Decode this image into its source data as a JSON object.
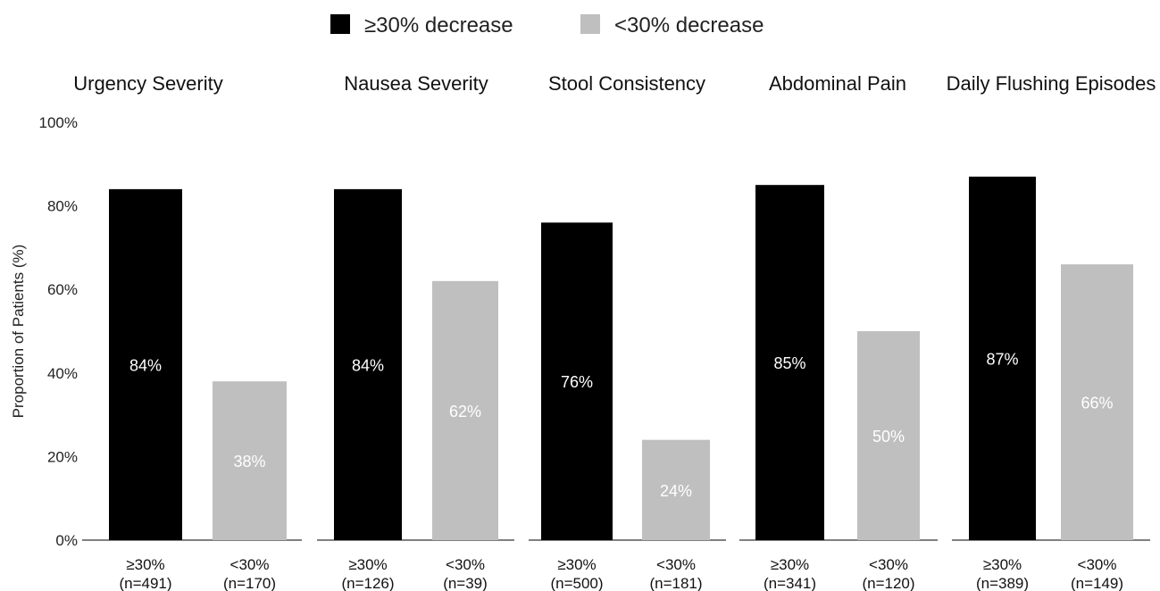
{
  "chart_data": {
    "type": "bar",
    "ylabel": "Proportion of Patients (%)",
    "ylim": [
      0,
      100
    ],
    "yticks": [
      "0%",
      "20%",
      "40%",
      "60%",
      "80%",
      "100%"
    ],
    "ytick_values": [
      0,
      20,
      40,
      60,
      80,
      100
    ],
    "grid": false,
    "legend_position": "top-center",
    "legend": [
      {
        "label": "≥30% decrease",
        "color": "#000000"
      },
      {
        "label": "<30% decrease",
        "color": "#bfbfbf"
      }
    ],
    "panels": [
      {
        "title": "Urgency Severity",
        "bars": [
          {
            "label": "≥30%",
            "n": "(n=491)",
            "value": 84,
            "value_label": "84%",
            "series": "≥30% decrease"
          },
          {
            "label": "<30%",
            "n": "(n=170)",
            "value": 38,
            "value_label": "38%",
            "series": "<30% decrease"
          }
        ]
      },
      {
        "title": "Nausea Severity",
        "bars": [
          {
            "label": "≥30%",
            "n": "(n=126)",
            "value": 84,
            "value_label": "84%",
            "series": "≥30% decrease"
          },
          {
            "label": "<30%",
            "n": "(n=39)",
            "value": 62,
            "value_label": "62%",
            "series": "<30% decrease"
          }
        ]
      },
      {
        "title": "Stool Consistency",
        "bars": [
          {
            "label": "≥30%",
            "n": "(n=500)",
            "value": 76,
            "value_label": "76%",
            "series": "≥30% decrease"
          },
          {
            "label": "<30%",
            "n": "(n=181)",
            "value": 24,
            "value_label": "24%",
            "series": "<30% decrease"
          }
        ]
      },
      {
        "title": "Abdominal Pain",
        "bars": [
          {
            "label": "≥30%",
            "n": "(n=341)",
            "value": 85,
            "value_label": "85%",
            "series": "≥30% decrease"
          },
          {
            "label": "<30%",
            "n": "(n=120)",
            "value": 50,
            "value_label": "50%",
            "series": "<30% decrease"
          }
        ]
      },
      {
        "title": "Daily Flushing Episodes",
        "bars": [
          {
            "label": "≥30%",
            "n": "(n=389)",
            "value": 87,
            "value_label": "87%",
            "series": "≥30% decrease"
          },
          {
            "label": "<30%",
            "n": "(n=149)",
            "value": 66,
            "value_label": "66%",
            "series": "<30% decrease"
          }
        ]
      }
    ]
  }
}
